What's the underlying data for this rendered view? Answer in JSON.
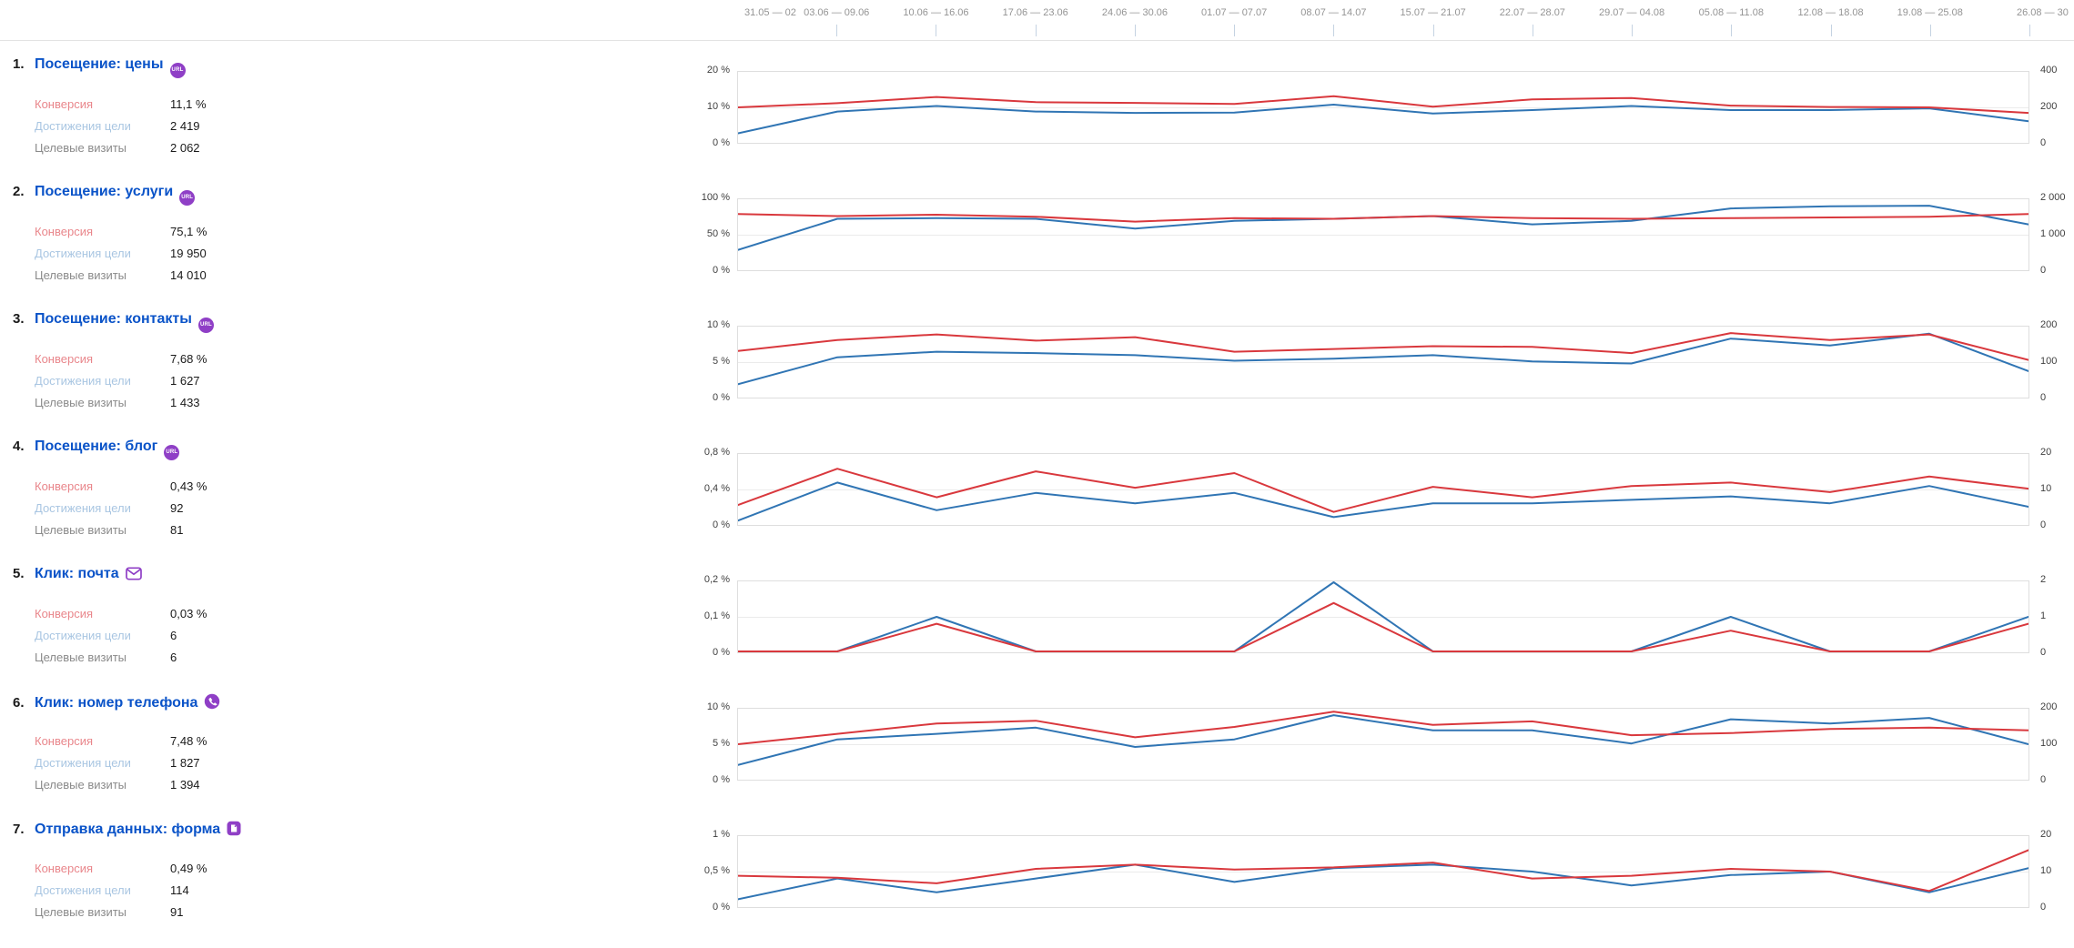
{
  "header": {
    "dates": [
      "31.05 — 02",
      "03.06 — 09.06",
      "10.06 — 16.06",
      "17.06 — 23.06",
      "24.06 — 30.06",
      "01.07 — 07.07",
      "08.07 — 14.07",
      "15.07 — 21.07",
      "22.07 — 28.07",
      "29.07 — 04.08",
      "05.08 — 11.08",
      "12.08 — 18.08",
      "19.08 — 25.08",
      "26.08 — 30"
    ]
  },
  "metric_labels": {
    "conversion": "Конверсия",
    "reaches": "Достижения цели",
    "visits": "Целевые визиты"
  },
  "icons": {
    "url_badge_text": "URL",
    "goal_icon_names": [
      "url-badge",
      "url-badge",
      "url-badge",
      "url-badge",
      "email-icon",
      "phone-icon",
      "form-icon"
    ]
  },
  "colors": {
    "conversion_line": "#d9383d",
    "reaches_line": "#3075b4",
    "goal_link": "#0a53c8",
    "conversion_label": "#e9868b",
    "reaches_label": "#a9c6e2",
    "visits_label": "#8a8a8a",
    "badge_purple": "#8f3fc6",
    "gridline": "#ebebeb",
    "plot_border": "#dedede",
    "date_text": "#949494",
    "axis_text": "#3f3f3f",
    "tick_mark": "#c5d3e2"
  },
  "goals": [
    {
      "number": "1.",
      "title": "Посещение: цены",
      "conversion": "11,1 %",
      "reaches": "2 419",
      "visits": "2 062"
    },
    {
      "number": "2.",
      "title": "Посещение: услуги",
      "conversion": "75,1 %",
      "reaches": "19 950",
      "visits": "14 010"
    },
    {
      "number": "3.",
      "title": "Посещение: контакты",
      "conversion": "7,68 %",
      "reaches": "1 627",
      "visits": "1 433"
    },
    {
      "number": "4.",
      "title": "Посещение: блог",
      "conversion": "0,43 %",
      "reaches": "92",
      "visits": "81"
    },
    {
      "number": "5.",
      "title": "Клик: почта",
      "conversion": "0,03 %",
      "reaches": "6",
      "visits": "6"
    },
    {
      "number": "6.",
      "title": "Клик: номер телефона",
      "conversion": "7,48 %",
      "reaches": "1 827",
      "visits": "1 394"
    },
    {
      "number": "7.",
      "title": "Отправка данных: форма",
      "conversion": "0,49 %",
      "reaches": "114",
      "visits": "91"
    }
  ],
  "chart_data": [
    {
      "type": "line",
      "title": "Посещение: цены",
      "categories": [
        "31.05 — 02",
        "03.06 — 09.06",
        "10.06 — 16.06",
        "17.06 — 23.06",
        "24.06 — 30.06",
        "01.07 — 07.07",
        "08.07 — 14.07",
        "15.07 — 21.07",
        "22.07 — 28.07",
        "29.07 — 04.08",
        "05.08 — 11.08",
        "12.08 — 18.08",
        "19.08 — 25.08",
        "26.08 — 30"
      ],
      "series": [
        {
          "name": "Конверсия",
          "axis": "left",
          "unit": "%",
          "color": "#d9383d",
          "values": [
            10,
            11.2,
            13,
            11.5,
            11.3,
            11,
            13.2,
            10.2,
            12.3,
            12.7,
            10.5,
            10.1,
            10,
            8.4
          ]
        },
        {
          "name": "Достижения цели",
          "axis": "right",
          "color": "#3075b4",
          "values": [
            50,
            176,
            208,
            176,
            168,
            170,
            216,
            164,
            184,
            208,
            184,
            184,
            194,
            120
          ]
        }
      ],
      "left_ylim": [
        0,
        20
      ],
      "right_ylim": [
        0,
        400
      ],
      "left_ticks": [
        "20 %",
        "10 %",
        "0 %"
      ],
      "right_ticks": [
        "400",
        "200",
        "0"
      ],
      "grid": "horizontal",
      "legend": "none"
    },
    {
      "type": "line",
      "title": "Посещение: услуги",
      "categories": [
        "31.05 — 02",
        "03.06 — 09.06",
        "10.06 — 16.06",
        "17.06 — 23.06",
        "24.06 — 30.06",
        "01.07 — 07.07",
        "08.07 — 14.07",
        "15.07 — 21.07",
        "22.07 — 28.07",
        "29.07 — 04.08",
        "05.08 — 11.08",
        "12.08 — 18.08",
        "19.08 — 25.08",
        "26.08 — 30"
      ],
      "series": [
        {
          "name": "Конверсия",
          "axis": "left",
          "unit": "%",
          "color": "#d9383d",
          "values": [
            80,
            77,
            79,
            76,
            69,
            74,
            73,
            77,
            74,
            73,
            74,
            75,
            76,
            80
          ]
        },
        {
          "name": "Достижения цели",
          "axis": "right",
          "color": "#3075b4",
          "values": [
            560,
            1460,
            1480,
            1460,
            1180,
            1400,
            1460,
            1540,
            1300,
            1400,
            1760,
            1820,
            1840,
            1300
          ]
        }
      ],
      "left_ylim": [
        0,
        100
      ],
      "right_ylim": [
        0,
        2000
      ],
      "left_ticks": [
        "100 %",
        "50 %",
        "0 %"
      ],
      "right_ticks": [
        "2 000",
        "1 000",
        "0"
      ],
      "grid": "horizontal",
      "legend": "none"
    },
    {
      "type": "line",
      "title": "Посещение: контакты",
      "categories": [
        "31.05 — 02",
        "03.06 — 09.06",
        "10.06 — 16.06",
        "17.06 — 23.06",
        "24.06 — 30.06",
        "01.07 — 07.07",
        "08.07 — 14.07",
        "15.07 — 21.07",
        "22.07 — 28.07",
        "29.07 — 04.08",
        "05.08 — 11.08",
        "12.08 — 18.08",
        "19.08 — 25.08",
        "26.08 — 30"
      ],
      "series": [
        {
          "name": "Конверсия",
          "axis": "left",
          "unit": "%",
          "color": "#d9383d",
          "values": [
            6.6,
            8.2,
            9,
            8.1,
            8.6,
            6.5,
            6.9,
            7.3,
            7.2,
            6.3,
            9.2,
            8.2,
            9,
            5.3
          ]
        },
        {
          "name": "Достижения цели",
          "axis": "right",
          "color": "#3075b4",
          "values": [
            36,
            114,
            130,
            126,
            120,
            104,
            110,
            120,
            102,
            96,
            168,
            148,
            182,
            74
          ]
        }
      ],
      "left_ylim": [
        0,
        10
      ],
      "right_ylim": [
        0,
        200
      ],
      "left_ticks": [
        "10 %",
        "5 %",
        "0 %"
      ],
      "right_ticks": [
        "200",
        "100",
        "0"
      ],
      "grid": "horizontal",
      "legend": "none"
    },
    {
      "type": "line",
      "title": "Посещение: блог",
      "categories": [
        "31.05 — 02",
        "03.06 — 09.06",
        "10.06 — 16.06",
        "17.06 — 23.06",
        "24.06 — 30.06",
        "01.07 — 07.07",
        "08.07 — 14.07",
        "15.07 — 21.07",
        "22.07 — 28.07",
        "29.07 — 04.08",
        "05.08 — 11.08",
        "12.08 — 18.08",
        "19.08 — 25.08",
        "26.08 — 30"
      ],
      "series": [
        {
          "name": "Конверсия",
          "axis": "left",
          "unit": "%",
          "color": "#d9383d",
          "values": [
            0.22,
            0.64,
            0.31,
            0.61,
            0.42,
            0.59,
            0.14,
            0.43,
            0.31,
            0.44,
            0.48,
            0.37,
            0.55,
            0.41
          ]
        },
        {
          "name": "Достижения цели",
          "axis": "right",
          "color": "#3075b4",
          "values": [
            1,
            12,
            4,
            9,
            6,
            9,
            2,
            6,
            6,
            7,
            8,
            6,
            11,
            5
          ]
        }
      ],
      "left_ylim": [
        0,
        0.8
      ],
      "right_ylim": [
        0,
        20
      ],
      "left_ticks": [
        "0,8 %",
        "0,4 %",
        "0 %"
      ],
      "right_ticks": [
        "20",
        "10",
        "0"
      ],
      "grid": "horizontal",
      "legend": "none"
    },
    {
      "type": "line",
      "title": "Клик: почта",
      "categories": [
        "31.05 — 02",
        "03.06 — 09.06",
        "10.06 — 16.06",
        "17.06 — 23.06",
        "24.06 — 30.06",
        "01.07 — 07.07",
        "08.07 — 14.07",
        "15.07 — 21.07",
        "22.07 — 28.07",
        "29.07 — 04.08",
        "05.08 — 11.08",
        "12.08 — 18.08",
        "19.08 — 25.08",
        "26.08 — 30"
      ],
      "series": [
        {
          "name": "Конверсия",
          "axis": "left",
          "unit": "%",
          "color": "#d9383d",
          "values": [
            0,
            0,
            0.08,
            0,
            0,
            0,
            0.14,
            0,
            0,
            0,
            0.06,
            0,
            0,
            0.08
          ]
        },
        {
          "name": "Достижения цели",
          "axis": "right",
          "color": "#3075b4",
          "values": [
            0,
            0,
            1,
            0,
            0,
            0,
            2,
            0,
            0,
            0,
            1,
            0,
            0,
            1
          ]
        }
      ],
      "left_ylim": [
        0,
        0.2
      ],
      "right_ylim": [
        0,
        2
      ],
      "left_ticks": [
        "0,2 %",
        "0,1 %",
        "0 %"
      ],
      "right_ticks": [
        "2",
        "1",
        "0"
      ],
      "grid": "horizontal",
      "legend": "none"
    },
    {
      "type": "line",
      "title": "Клик: номер телефона",
      "categories": [
        "31.05 — 02",
        "03.06 — 09.06",
        "10.06 — 16.06",
        "17.06 — 23.06",
        "24.06 — 30.06",
        "01.07 — 07.07",
        "08.07 — 14.07",
        "15.07 — 21.07",
        "22.07 — 28.07",
        "29.07 — 04.08",
        "05.08 — 11.08",
        "12.08 — 18.08",
        "19.08 — 25.08",
        "26.08 — 30"
      ],
      "series": [
        {
          "name": "Конверсия",
          "axis": "left",
          "unit": "%",
          "color": "#d9383d",
          "values": [
            5,
            6.5,
            8,
            8.4,
            6,
            7.5,
            9.7,
            7.8,
            8.3,
            6.3,
            6.6,
            7.2,
            7.4,
            7
          ]
        },
        {
          "name": "Достижения цели",
          "axis": "right",
          "color": "#3075b4",
          "values": [
            40,
            114,
            130,
            148,
            92,
            114,
            184,
            140,
            140,
            102,
            172,
            160,
            176,
            100
          ]
        }
      ],
      "left_ylim": [
        0,
        10
      ],
      "right_ylim": [
        0,
        200
      ],
      "left_ticks": [
        "10 %",
        "5 %",
        "0 %"
      ],
      "right_ticks": [
        "200",
        "100",
        "0"
      ],
      "grid": "horizontal",
      "legend": "none"
    },
    {
      "type": "line",
      "title": "Отправка данных: форма",
      "categories": [
        "31.05 — 02",
        "03.06 — 09.06",
        "10.06 — 16.06",
        "17.06 — 23.06",
        "24.06 — 30.06",
        "01.07 — 07.07",
        "08.07 — 14.07",
        "15.07 — 21.07",
        "22.07 — 28.07",
        "29.07 — 04.08",
        "05.08 — 11.08",
        "12.08 — 18.08",
        "19.08 — 25.08",
        "26.08 — 30"
      ],
      "series": [
        {
          "name": "Конверсия",
          "axis": "left",
          "unit": "%",
          "color": "#d9383d",
          "values": [
            0.44,
            0.41,
            0.33,
            0.54,
            0.6,
            0.53,
            0.56,
            0.63,
            0.4,
            0.44,
            0.54,
            0.5,
            0.22,
            0.81
          ]
        },
        {
          "name": "Достижения цели",
          "axis": "right",
          "color": "#3075b4",
          "values": [
            2,
            8,
            4,
            8,
            12,
            7,
            11,
            12,
            10,
            6,
            9,
            10,
            4,
            11
          ]
        }
      ],
      "left_ylim": [
        0,
        1
      ],
      "right_ylim": [
        0,
        20
      ],
      "left_ticks": [
        "1 %",
        "0,5 %",
        "0 %"
      ],
      "right_ticks": [
        "20",
        "10",
        "0"
      ],
      "grid": "horizontal",
      "legend": "none"
    }
  ]
}
